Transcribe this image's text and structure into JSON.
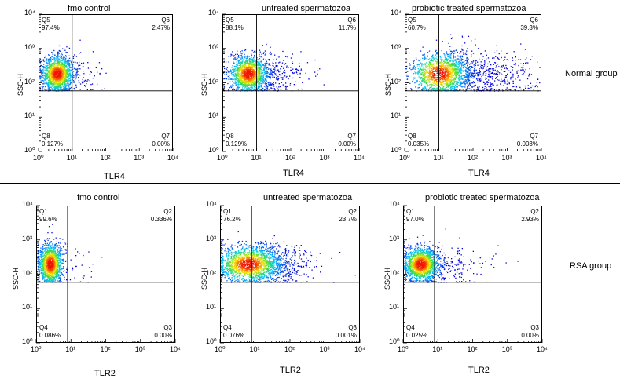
{
  "chart_data": [
    {
      "type": "scatter",
      "title": "fmo control",
      "xlabel": "TLR4",
      "ylabel": "SSC-H",
      "xlim": [
        1,
        10000
      ],
      "ylim": [
        1,
        10000
      ],
      "xscale": "log",
      "yscale": "log",
      "tick_labels": [
        "10⁰",
        "10¹",
        "10²",
        "10³",
        "10⁴"
      ],
      "gate": {
        "x": 10,
        "y": 58
      },
      "quadrants": [
        {
          "name": "Q5",
          "value": "97.4%",
          "position": "top-left"
        },
        {
          "name": "Q6",
          "value": "2.47%",
          "position": "top-right"
        },
        {
          "name": "Q8",
          "value": "0.127%",
          "position": "bottom-left"
        },
        {
          "name": "Q7",
          "value": "0.00%",
          "position": "bottom-right"
        }
      ],
      "cloud": {
        "cx": 0.55,
        "cy": 2.27,
        "sx": 0.23,
        "sy": 0.26,
        "n": 1700,
        "tail": 0.08,
        "tail_len": 0.9
      }
    },
    {
      "type": "scatter",
      "title": "untreated spermatozoa",
      "xlabel": "TLR4",
      "ylabel": "SSC-H",
      "xlim": [
        1,
        10000
      ],
      "ylim": [
        1,
        10000
      ],
      "xscale": "log",
      "yscale": "log",
      "tick_labels": [
        "10⁰",
        "10¹",
        "10²",
        "10³",
        "10⁴"
      ],
      "gate": {
        "x": 10,
        "y": 58
      },
      "quadrants": [
        {
          "name": "Q5",
          "value": "88.1%",
          "position": "top-left"
        },
        {
          "name": "Q6",
          "value": "11.7%",
          "position": "top-right"
        },
        {
          "name": "Q8",
          "value": "0.129%",
          "position": "bottom-left"
        },
        {
          "name": "Q7",
          "value": "0.00%",
          "position": "bottom-right"
        }
      ],
      "cloud": {
        "cx": 0.75,
        "cy": 2.27,
        "sx": 0.27,
        "sy": 0.26,
        "n": 1800,
        "tail": 0.18,
        "tail_len": 1.3
      }
    },
    {
      "type": "scatter",
      "title": "probiotic treated spermatozoa",
      "xlabel": "TLR4",
      "ylabel": "SSC-H",
      "xlim": [
        1,
        10000
      ],
      "ylim": [
        1,
        10000
      ],
      "xscale": "log",
      "yscale": "log",
      "tick_labels": [
        "10⁰",
        "10¹",
        "10²",
        "10³",
        "10⁴"
      ],
      "gate": {
        "x": 10,
        "y": 58
      },
      "quadrants": [
        {
          "name": "Q5",
          "value": "60.7%",
          "position": "top-left"
        },
        {
          "name": "Q6",
          "value": "39.3%",
          "position": "top-right"
        },
        {
          "name": "Q8",
          "value": "0.035%",
          "position": "bottom-left"
        },
        {
          "name": "Q7",
          "value": "0.003%",
          "position": "bottom-right"
        }
      ],
      "cloud": {
        "cx": 1.0,
        "cy": 2.27,
        "sx": 0.4,
        "sy": 0.3,
        "n": 2000,
        "tail": 0.4,
        "tail_len": 2.2
      }
    },
    {
      "type": "scatter",
      "title": "fmo control",
      "xlabel": "TLR2",
      "ylabel": "SSC-H",
      "xlim": [
        1,
        10000
      ],
      "ylim": [
        1,
        10000
      ],
      "xscale": "log",
      "yscale": "log",
      "tick_labels": [
        "10⁰",
        "10¹",
        "10²",
        "10³",
        "10⁴"
      ],
      "gate": {
        "x": 8,
        "y": 58
      },
      "quadrants": [
        {
          "name": "Q1",
          "value": "99.6%",
          "position": "top-left"
        },
        {
          "name": "Q2",
          "value": "0.336%",
          "position": "top-right"
        },
        {
          "name": "Q4",
          "value": "0.086%",
          "position": "bottom-left"
        },
        {
          "name": "Q3",
          "value": "0.00%",
          "position": "bottom-right"
        }
      ],
      "cloud": {
        "cx": 0.4,
        "cy": 2.3,
        "sx": 0.17,
        "sy": 0.3,
        "n": 1500,
        "tail": 0.04,
        "tail_len": 1.0
      }
    },
    {
      "type": "scatter",
      "title": "untreated spermatozoa",
      "xlabel": "TLR2",
      "ylabel": "SSC-H",
      "xlim": [
        1,
        10000
      ],
      "ylim": [
        1,
        10000
      ],
      "xscale": "log",
      "yscale": "log",
      "tick_labels": [
        "10⁰",
        "10¹",
        "10²",
        "10³",
        "10⁴"
      ],
      "gate": {
        "x": 8,
        "y": 58
      },
      "quadrants": [
        {
          "name": "Q1",
          "value": "76.2%",
          "position": "top-left"
        },
        {
          "name": "Q2",
          "value": "23.7%",
          "position": "top-right"
        },
        {
          "name": "Q4",
          "value": "0.076%",
          "position": "bottom-left"
        },
        {
          "name": "Q3",
          "value": "0.001%",
          "position": "bottom-right"
        }
      ],
      "cloud": {
        "cx": 0.8,
        "cy": 2.3,
        "sx": 0.45,
        "sy": 0.26,
        "n": 2100,
        "tail": 0.25,
        "tail_len": 1.3
      }
    },
    {
      "type": "scatter",
      "title": "probiotic treated spermatozoa",
      "xlabel": "TLR2",
      "ylabel": "SSC-H",
      "xlim": [
        1,
        10000
      ],
      "ylim": [
        1,
        10000
      ],
      "xscale": "log",
      "yscale": "log",
      "tick_labels": [
        "10⁰",
        "10¹",
        "10²",
        "10³",
        "10⁴"
      ],
      "gate": {
        "x": 8,
        "y": 58
      },
      "quadrants": [
        {
          "name": "Q1",
          "value": "97.0%",
          "position": "top-left"
        },
        {
          "name": "Q2",
          "value": "2.93%",
          "position": "top-right"
        },
        {
          "name": "Q4",
          "value": "0.025%",
          "position": "bottom-left"
        },
        {
          "name": "Q3",
          "value": "0.00%",
          "position": "bottom-right"
        }
      ],
      "cloud": {
        "cx": 0.5,
        "cy": 2.3,
        "sx": 0.25,
        "sy": 0.25,
        "n": 1800,
        "tail": 0.12,
        "tail_len": 1.5
      }
    }
  ],
  "group_labels": {
    "normal": "Normal group",
    "rsa": "RSA group"
  }
}
